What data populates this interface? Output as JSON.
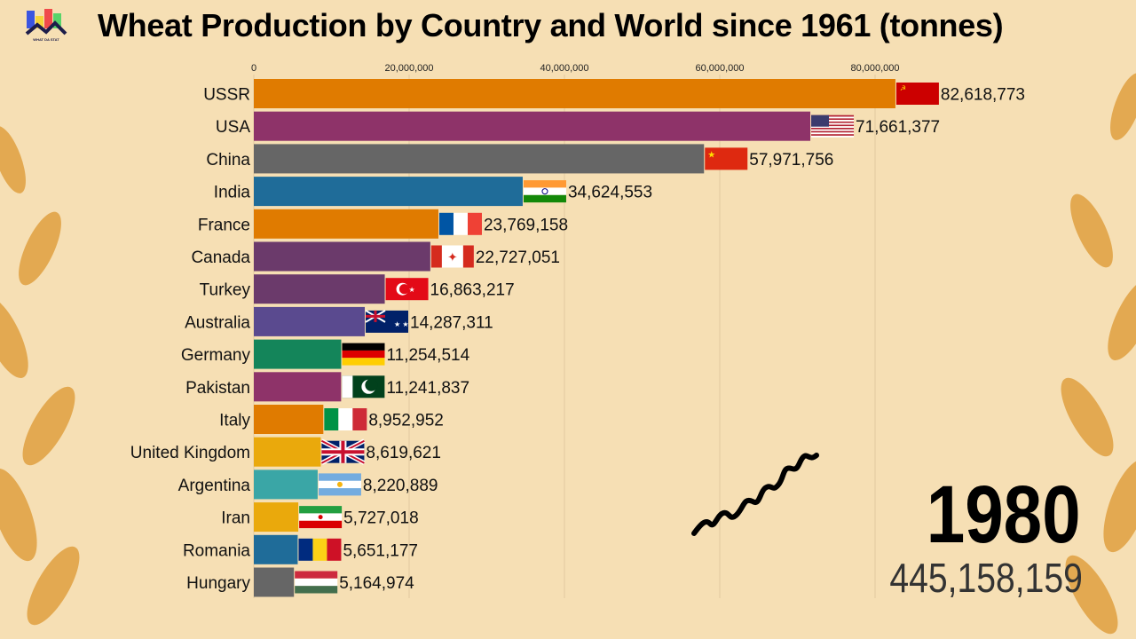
{
  "title": "Wheat Production by Country and World since 1961 (tonnes)",
  "logo_text": "WHAT DA STAT",
  "year": "1980",
  "world_total": "445,158,159",
  "chart_data": {
    "type": "bar",
    "orientation": "horizontal",
    "title": "Wheat Production by Country and World since 1961 (tonnes)",
    "xlim": [
      0,
      90000000
    ],
    "xticks": [
      0,
      20000000,
      40000000,
      60000000,
      80000000
    ],
    "xtick_labels": [
      "0",
      "20,000,000",
      "40,000,000",
      "60,000,000",
      "80,000,000"
    ],
    "grid": true,
    "categories": [
      "USSR",
      "USA",
      "China",
      "India",
      "France",
      "Canada",
      "Turkey",
      "Australia",
      "Germany",
      "Pakistan",
      "Italy",
      "United Kingdom",
      "Argentina",
      "Iran",
      "Romania",
      "Hungary"
    ],
    "values": [
      82618773,
      71661377,
      57971756,
      34624553,
      23769158,
      22727051,
      16863217,
      14287311,
      11254514,
      11241837,
      8952952,
      8619621,
      8220889,
      5727018,
      5651177,
      5164974
    ],
    "value_labels": [
      "82,618,773",
      "71,661,377",
      "57,971,756",
      "34,624,553",
      "23,769,158",
      "22,727,051",
      "16,863,217",
      "14,287,311",
      "11,254,514",
      "11,241,837",
      "8,952,952",
      "8,619,621",
      "8,220,889",
      "5,727,018",
      "5,651,177",
      "5,164,974"
    ],
    "colors": [
      "#e07b00",
      "#8e3369",
      "#666666",
      "#1f6c99",
      "#e07b00",
      "#6b3a6b",
      "#6b3a6b",
      "#5a4a8f",
      "#14855a",
      "#8e3369",
      "#e07b00",
      "#eaa90c",
      "#3aa6a6",
      "#eaa90c",
      "#1f6c99",
      "#666666"
    ],
    "flags": [
      "ussr",
      "usa",
      "china",
      "india",
      "france",
      "canada",
      "turkey",
      "australia",
      "germany",
      "pakistan",
      "italy",
      "uk",
      "argentina",
      "iran",
      "romania",
      "hungary"
    ]
  }
}
